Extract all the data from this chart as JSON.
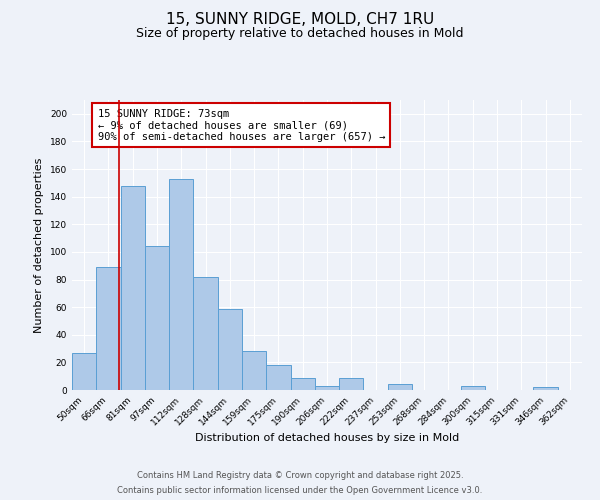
{
  "title": "15, SUNNY RIDGE, MOLD, CH7 1RU",
  "subtitle": "Size of property relative to detached houses in Mold",
  "xlabel": "Distribution of detached houses by size in Mold",
  "ylabel": "Number of detached properties",
  "bar_labels": [
    "50sqm",
    "66sqm",
    "81sqm",
    "97sqm",
    "112sqm",
    "128sqm",
    "144sqm",
    "159sqm",
    "175sqm",
    "190sqm",
    "206sqm",
    "222sqm",
    "237sqm",
    "253sqm",
    "268sqm",
    "284sqm",
    "300sqm",
    "315sqm",
    "331sqm",
    "346sqm",
    "362sqm"
  ],
  "bar_values": [
    27,
    89,
    148,
    104,
    153,
    82,
    59,
    28,
    18,
    9,
    3,
    9,
    0,
    4,
    0,
    0,
    3,
    0,
    0,
    2,
    0
  ],
  "bar_color": "#aec9e8",
  "bar_edgecolor": "#5a9fd4",
  "ylim": [
    0,
    210
  ],
  "yticks": [
    0,
    20,
    40,
    60,
    80,
    100,
    120,
    140,
    160,
    180,
    200
  ],
  "red_line_x": 1.45,
  "red_line_color": "#cc0000",
  "annotation_text": "15 SUNNY RIDGE: 73sqm\n← 9% of detached houses are smaller (69)\n90% of semi-detached houses are larger (657) →",
  "annotation_box_color": "#cc0000",
  "footer_line1": "Contains HM Land Registry data © Crown copyright and database right 2025.",
  "footer_line2": "Contains public sector information licensed under the Open Government Licence v3.0.",
  "bg_color": "#eef2f9",
  "grid_color": "#ffffff",
  "title_fontsize": 11,
  "subtitle_fontsize": 9,
  "tick_label_fontsize": 6.5,
  "ylabel_fontsize": 8,
  "xlabel_fontsize": 8,
  "annotation_fontsize": 7.5,
  "footer_fontsize": 6
}
